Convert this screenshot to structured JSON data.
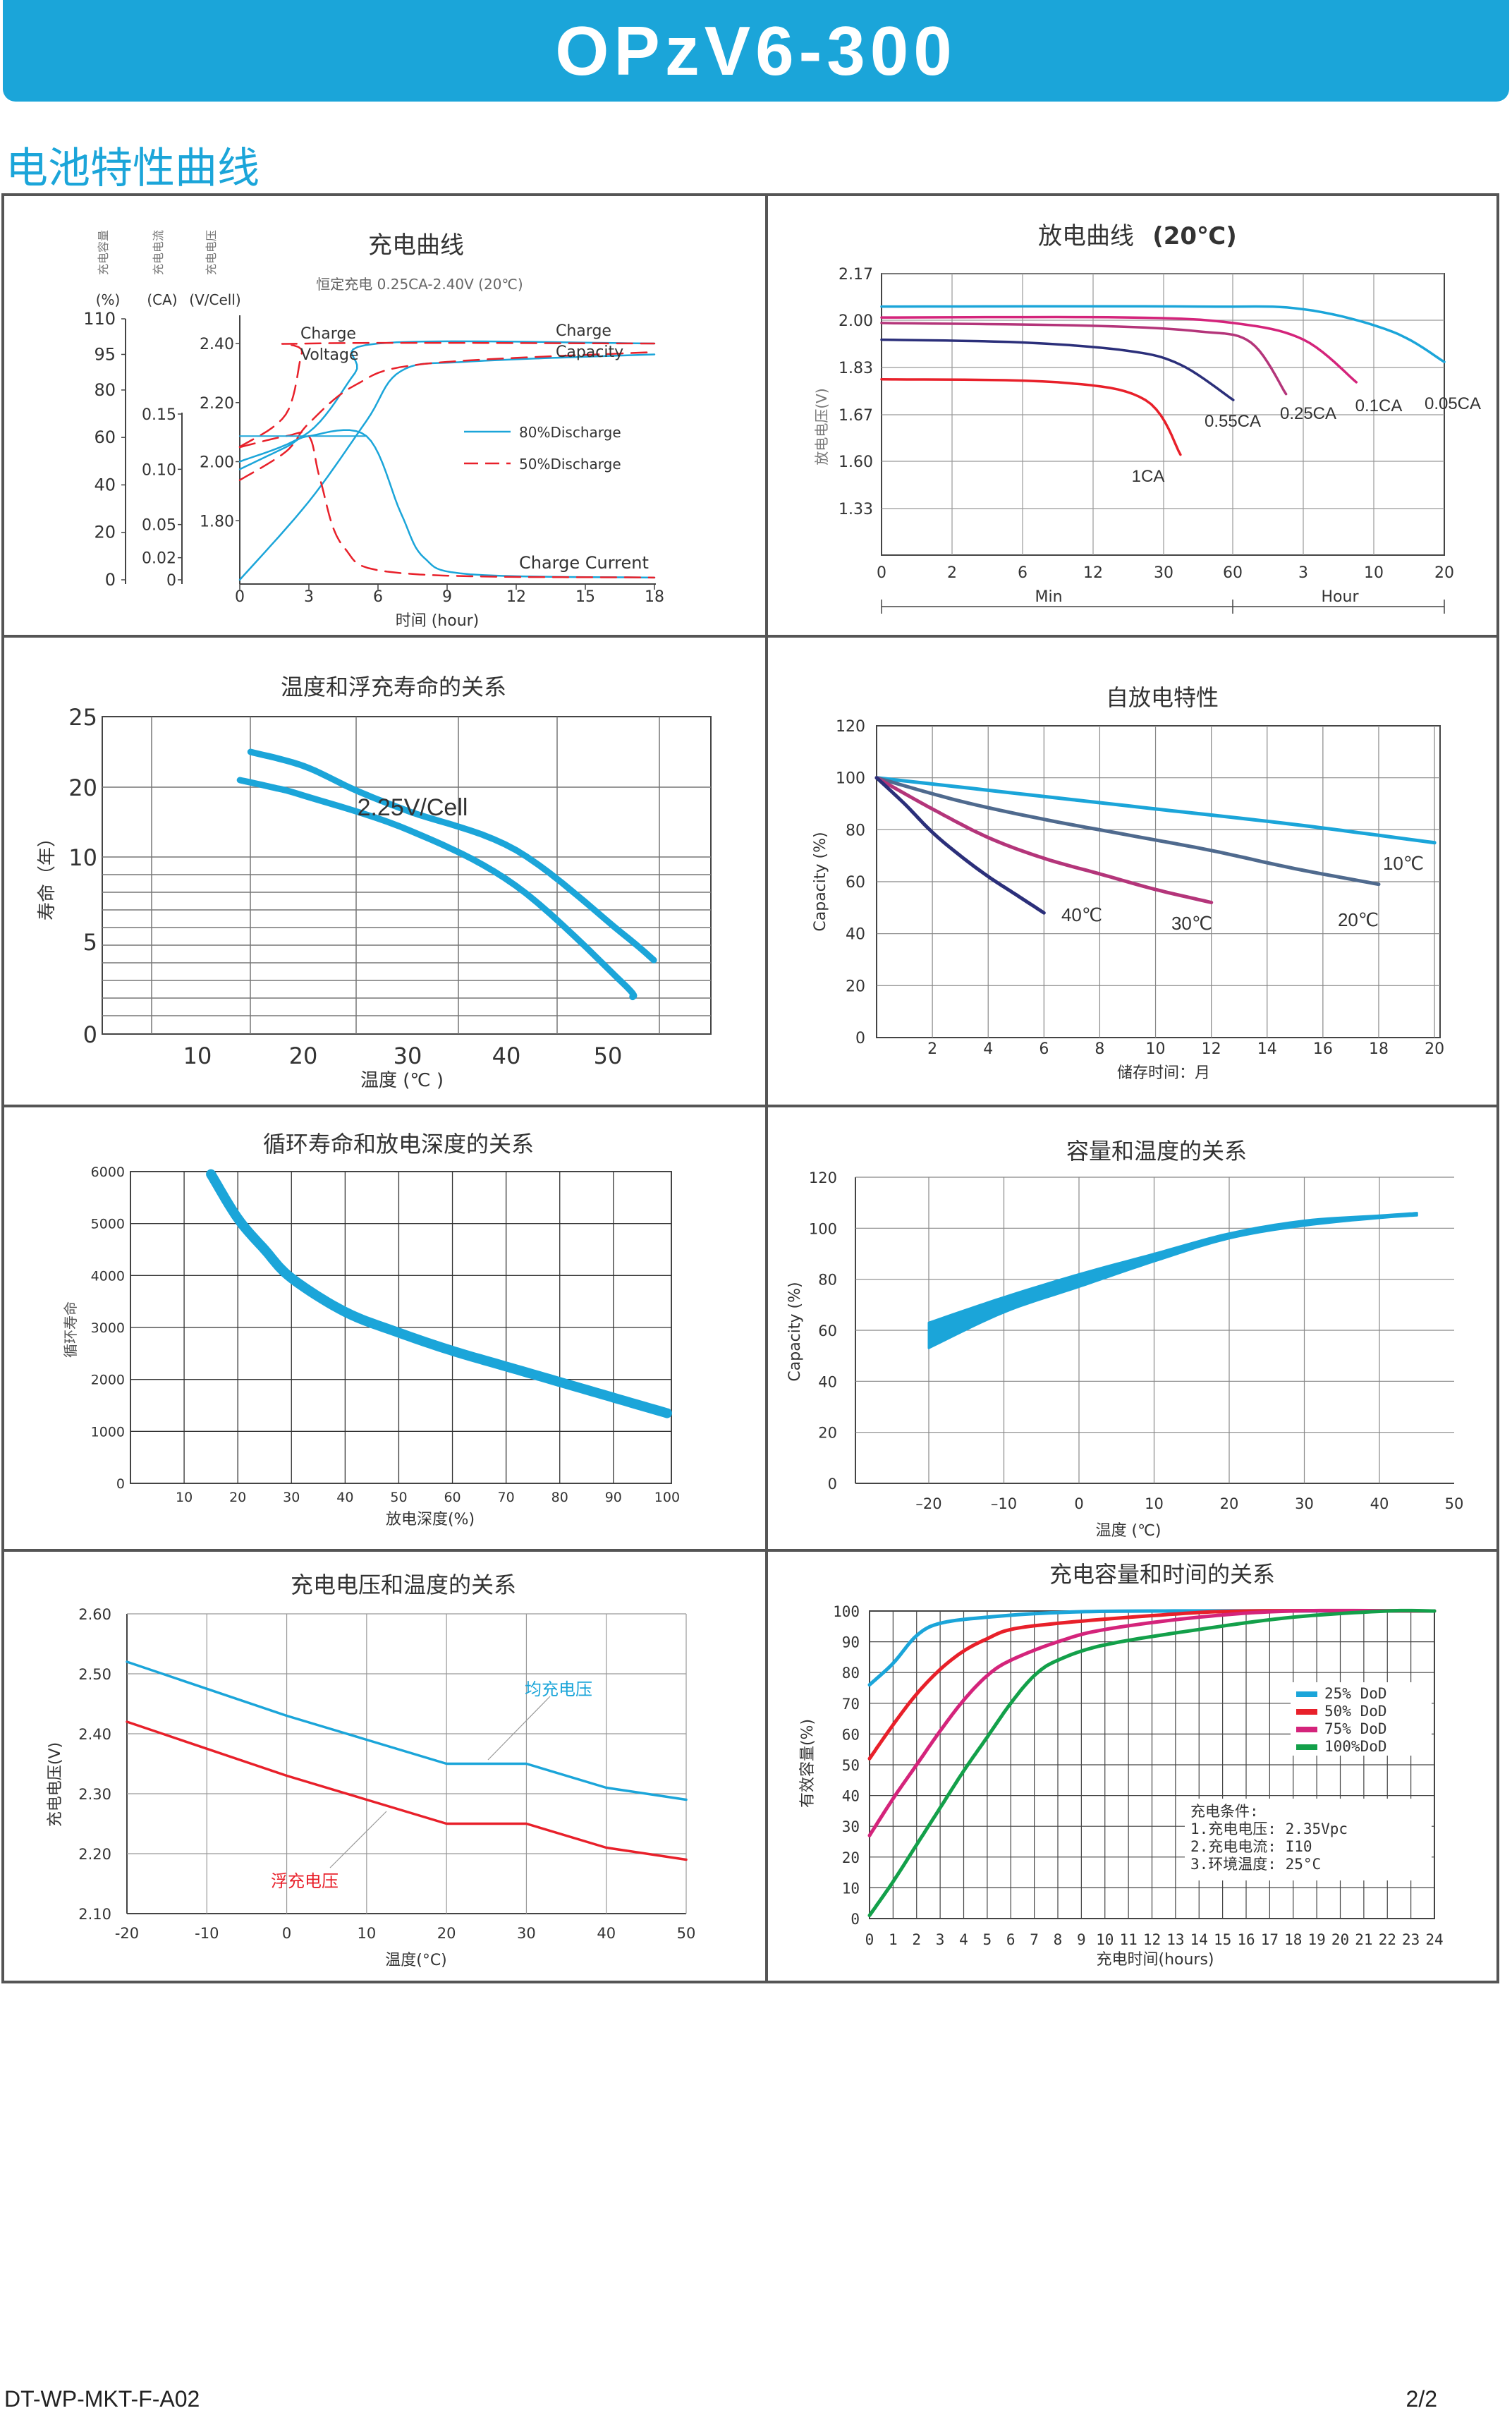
{
  "header": {
    "model": "OPzV6-300",
    "section_title": "电池特性曲线"
  },
  "footer": {
    "doc_code": "DT-WP-MKT-F-A02",
    "page": "2/2"
  },
  "colors": {
    "accent": "#1ba5d9",
    "cyan": "#1ba5d9",
    "red": "#e8202a",
    "magenta": "#d4247b",
    "green": "#13a04a",
    "navy": "#2b2f7a",
    "plum": "#b4357a",
    "slate": "#4f6a8e"
  },
  "chart_data": [
    {
      "id": "charge",
      "type": "line",
      "title": "充电曲线",
      "subtitle": "恒定充电 0.25CA-2.40V  (20℃)",
      "xlabel": "时间 (hour)",
      "x_ticks": [
        "0",
        "3",
        "6",
        "9",
        "12",
        "15",
        "18"
      ],
      "xlim": [
        0,
        18
      ],
      "axis_headers": [
        "充电容量",
        "充电电流",
        "充电电压"
      ],
      "axis_units": [
        "(%)",
        "(CA)",
        "(V/Cell)"
      ],
      "capacity_ticks": [
        "110",
        "95",
        "80",
        "60",
        "40",
        "20",
        "0"
      ],
      "current_ticks": [
        "0.15",
        "0.10",
        "0.05",
        "0.02",
        "0"
      ],
      "voltage_ticks": [
        "2.40",
        "2.20",
        "2.00",
        "1.80"
      ],
      "labels": {
        "voltage": "Charge\nVoltage",
        "capacity": "Charge\nCapacity",
        "current": "Charge Current"
      },
      "legend": [
        "80%Discharge",
        "50%Discharge"
      ],
      "series": [
        {
          "name": "80%Discharge",
          "kind": "voltage",
          "points": [
            [
              0,
              2.0
            ],
            [
              3,
              2.1
            ],
            [
              5,
              2.3
            ],
            [
              6,
              2.4
            ],
            [
              18,
              2.4
            ]
          ]
        },
        {
          "name": "50%Discharge",
          "kind": "voltage",
          "points": [
            [
              0,
              2.05
            ],
            [
              2,
              2.16
            ],
            [
              2.7,
              2.37
            ],
            [
              3,
              2.4
            ],
            [
              18,
              2.4
            ]
          ]
        },
        {
          "name": "80%Discharge",
          "kind": "capacity",
          "points": [
            [
              0,
              0
            ],
            [
              3,
              33
            ],
            [
              5.5,
              67
            ],
            [
              7,
              88
            ],
            [
              10,
              92
            ],
            [
              18,
              95
            ]
          ]
        },
        {
          "name": "50%Discharge",
          "kind": "capacity",
          "points": [
            [
              0,
              42
            ],
            [
              2,
              54
            ],
            [
              3,
              66
            ],
            [
              5,
              82
            ],
            [
              8,
              91
            ],
            [
              18,
              96
            ]
          ]
        },
        {
          "name": "80%Discharge",
          "kind": "current",
          "points": [
            [
              0,
              0.1
            ],
            [
              2,
              0.12
            ],
            [
              3,
              0.13
            ],
            [
              5.5,
              0.13
            ],
            [
              7,
              0.06
            ],
            [
              8,
              0.02
            ],
            [
              10,
              0.005
            ],
            [
              18,
              0.002
            ]
          ]
        },
        {
          "name": "50%Discharge",
          "kind": "current",
          "points": [
            [
              0,
              0.12
            ],
            [
              2,
              0.13
            ],
            [
              3,
              0.13
            ],
            [
              3.5,
              0.09
            ],
            [
              4.5,
              0.03
            ],
            [
              7,
              0.006
            ],
            [
              18,
              0.002
            ]
          ]
        }
      ]
    },
    {
      "id": "discharge",
      "type": "line",
      "title": "放电曲线",
      "title_bold": "(20℃)",
      "ylabel": "放电电压(V)",
      "y_ticks": [
        "2.17",
        "2.00",
        "1.83",
        "1.67",
        "1.60",
        "1.33"
      ],
      "x_ticks": [
        "0",
        "2",
        "6",
        "12",
        "30",
        "60",
        "3",
        "10",
        "20"
      ],
      "x_groups": [
        "Min",
        "Hour"
      ],
      "series": [
        {
          "name": "1CA",
          "points": [
            [
              0,
              1.79
            ],
            [
              5,
              1.78
            ],
            [
              7.5,
              1.72
            ],
            [
              8.5,
              1.61
            ]
          ]
        },
        {
          "name": "0.55CA",
          "points": [
            [
              0,
              1.93
            ],
            [
              4,
              1.92
            ],
            [
              7,
              1.89
            ],
            [
              8.5,
              1.84
            ],
            [
              10,
              1.72
            ]
          ]
        },
        {
          "name": "0.25CA",
          "points": [
            [
              0,
              1.99
            ],
            [
              6,
              1.98
            ],
            [
              9,
              1.96
            ],
            [
              10.5,
              1.92
            ],
            [
              11.5,
              1.74
            ]
          ]
        },
        {
          "name": "0.1CA",
          "points": [
            [
              0,
              2.01
            ],
            [
              7,
              2.01
            ],
            [
              10,
              1.99
            ],
            [
              12,
              1.93
            ],
            [
              13.5,
              1.78
            ]
          ]
        },
        {
          "name": "0.05CA",
          "points": [
            [
              0,
              2.05
            ],
            [
              9,
              2.05
            ],
            [
              12,
              2.04
            ],
            [
              14.5,
              1.96
            ],
            [
              16,
              1.85
            ]
          ]
        }
      ]
    },
    {
      "id": "float-life",
      "type": "line",
      "title": "温度和浮充寿命的关系",
      "ylabel": "寿命（年）",
      "xlabel": "温度 (℃ )",
      "y_ticks": [
        "25",
        "20",
        "10",
        "5",
        "0"
      ],
      "x_ticks": [
        "10",
        "20",
        "30",
        "40",
        "50"
      ],
      "band_label": "2.25V/Cell",
      "upper": [
        [
          15,
          22.5
        ],
        [
          20,
          21.5
        ],
        [
          25,
          19.5
        ],
        [
          30,
          16.5
        ],
        [
          40,
          11.0
        ],
        [
          50,
          5.5
        ],
        [
          53,
          4.0
        ]
      ],
      "lower": [
        [
          14,
          20.5
        ],
        [
          17,
          20.0
        ],
        [
          20,
          18.8
        ],
        [
          30,
          13.8
        ],
        [
          40,
          8.3
        ],
        [
          50,
          2.8
        ],
        [
          51,
          2.0
        ]
      ]
    },
    {
      "id": "self-discharge",
      "type": "line",
      "title": "自放电特性",
      "ylabel": "Capacity (%)",
      "xlabel": "储存时间：月",
      "y_ticks": [
        "120",
        "100",
        "80",
        "60",
        "40",
        "20",
        "0"
      ],
      "x_ticks": [
        "2",
        "4",
        "6",
        "8",
        "10",
        "12",
        "14",
        "16",
        "18",
        "20"
      ],
      "series": [
        {
          "name": "10℃",
          "points": [
            [
              0,
              100
            ],
            [
              5,
              94
            ],
            [
              10,
              88
            ],
            [
              15,
              82
            ],
            [
              20,
              75
            ]
          ]
        },
        {
          "name": "20℃",
          "points": [
            [
              0,
              100
            ],
            [
              3,
              91
            ],
            [
              6,
              84
            ],
            [
              9,
              78
            ],
            [
              12,
              72
            ],
            [
              15,
              65
            ],
            [
              18,
              59
            ]
          ]
        },
        {
          "name": "30℃",
          "points": [
            [
              0,
              100
            ],
            [
              2,
              88
            ],
            [
              4,
              77
            ],
            [
              6,
              69
            ],
            [
              8,
              63
            ],
            [
              10,
              57
            ],
            [
              12,
              52
            ]
          ]
        },
        {
          "name": "40℃",
          "points": [
            [
              0,
              100
            ],
            [
              1,
              90
            ],
            [
              2,
              79
            ],
            [
              3,
              70
            ],
            [
              4,
              62
            ],
            [
              5,
              55
            ],
            [
              6,
              48
            ]
          ]
        }
      ]
    },
    {
      "id": "cycle-life",
      "type": "line",
      "title": "循环寿命和放电深度的关系",
      "ylabel": "循环寿命",
      "xlabel": "放电深度(%)",
      "y_ticks": [
        "6000",
        "5000",
        "4000",
        "3000",
        "2000",
        "1000",
        "0"
      ],
      "x_ticks": [
        "10",
        "20",
        "30",
        "40",
        "50",
        "60",
        "70",
        "80",
        "90",
        "100"
      ],
      "points": [
        [
          15,
          5950
        ],
        [
          20,
          5100
        ],
        [
          25,
          4500
        ],
        [
          30,
          3950
        ],
        [
          40,
          3300
        ],
        [
          50,
          2900
        ],
        [
          60,
          2550
        ],
        [
          70,
          2250
        ],
        [
          80,
          1950
        ],
        [
          90,
          1650
        ],
        [
          100,
          1350
        ]
      ]
    },
    {
      "id": "capacity-temp",
      "type": "area",
      "title": "容量和温度的关系",
      "ylabel": "Capacity (%)",
      "xlabel": "温度 (℃)",
      "y_ticks": [
        "120",
        "100",
        "80",
        "60",
        "40",
        "20",
        "0"
      ],
      "x_ticks": [
        "-20",
        "-10",
        "0",
        "10",
        "20",
        "30",
        "40",
        "50"
      ],
      "upper": [
        [
          -20,
          63
        ],
        [
          -10,
          73
        ],
        [
          0,
          82
        ],
        [
          10,
          90
        ],
        [
          20,
          98
        ],
        [
          30,
          103
        ],
        [
          40,
          105
        ],
        [
          45,
          106
        ]
      ],
      "lower": [
        [
          -20,
          53
        ],
        [
          -10,
          67
        ],
        [
          0,
          77
        ],
        [
          10,
          87
        ],
        [
          20,
          96
        ],
        [
          30,
          101
        ],
        [
          40,
          104
        ],
        [
          45,
          105
        ]
      ]
    },
    {
      "id": "voltage-temp",
      "type": "line",
      "title": "充电电压和温度的关系",
      "ylabel": "充电电压(V)",
      "xlabel": "温度(°C)",
      "y_ticks": [
        "2.60",
        "2.50",
        "2.40",
        "2.30",
        "2.20",
        "2.10"
      ],
      "x_ticks": [
        "-20",
        "-10",
        "0",
        "10",
        "20",
        "30",
        "40",
        "50"
      ],
      "series": [
        {
          "name": "均充电压",
          "points": [
            [
              -20,
              2.52
            ],
            [
              0,
              2.43
            ],
            [
              10,
              2.39
            ],
            [
              20,
              2.35
            ],
            [
              30,
              2.35
            ],
            [
              40,
              2.31
            ],
            [
              50,
              2.29
            ]
          ]
        },
        {
          "name": "浮充电压",
          "points": [
            [
              -20,
              2.42
            ],
            [
              0,
              2.33
            ],
            [
              10,
              2.29
            ],
            [
              20,
              2.25
            ],
            [
              30,
              2.25
            ],
            [
              40,
              2.21
            ],
            [
              50,
              2.19
            ]
          ]
        }
      ]
    },
    {
      "id": "charge-capacity-time",
      "type": "line",
      "title": "充电容量和时间的关系",
      "ylabel": "有效容量(%)",
      "xlabel": "充电时间(hours)",
      "y_ticks": [
        "100",
        "90",
        "80",
        "70",
        "60",
        "50",
        "40",
        "30",
        "20",
        "10",
        "0"
      ],
      "x_ticks": [
        "0",
        "1",
        "2",
        "3",
        "4",
        "5",
        "6",
        "7",
        "8",
        "9",
        "10",
        "11",
        "12",
        "13",
        "14",
        "15",
        "16",
        "17",
        "18",
        "19",
        "20",
        "21",
        "22",
        "23",
        "24"
      ],
      "conditions": [
        "充电条件:",
        "1.充电电压: 2.35Vpc",
        "2.充电电流: I10",
        "3.环境温度: 25°C"
      ],
      "series": [
        {
          "name": "25%  DoD",
          "points": [
            [
              0,
              76
            ],
            [
              1,
              83
            ],
            [
              2,
              92
            ],
            [
              3,
              96
            ],
            [
              5,
              98
            ],
            [
              8,
              99.5
            ],
            [
              12,
              100
            ],
            [
              24,
              100
            ]
          ]
        },
        {
          "name": "50%  DoD",
          "points": [
            [
              0,
              52
            ],
            [
              1,
              63
            ],
            [
              2,
              73
            ],
            [
              3,
              81
            ],
            [
              4,
              87
            ],
            [
              5,
              91
            ],
            [
              6,
              94
            ],
            [
              8,
              96
            ],
            [
              12,
              98.5
            ],
            [
              16,
              100
            ],
            [
              24,
              100
            ]
          ]
        },
        {
          "name": "75%  DoD",
          "points": [
            [
              0,
              27
            ],
            [
              1,
              39
            ],
            [
              2,
              50
            ],
            [
              3,
              61
            ],
            [
              4,
              71
            ],
            [
              5,
              79
            ],
            [
              6,
              84
            ],
            [
              8,
              90
            ],
            [
              10,
              94
            ],
            [
              14,
              98
            ],
            [
              18,
              100
            ],
            [
              24,
              100
            ]
          ]
        },
        {
          "name": "100%DoD",
          "points": [
            [
              0,
              1
            ],
            [
              1,
              12
            ],
            [
              2,
              24
            ],
            [
              3,
              36
            ],
            [
              4,
              48
            ],
            [
              5,
              59
            ],
            [
              6,
              70
            ],
            [
              7,
              79
            ],
            [
              8,
              84
            ],
            [
              10,
              89
            ],
            [
              14,
              94
            ],
            [
              18,
              98
            ],
            [
              22,
              100
            ],
            [
              24,
              100
            ]
          ]
        }
      ]
    }
  ]
}
